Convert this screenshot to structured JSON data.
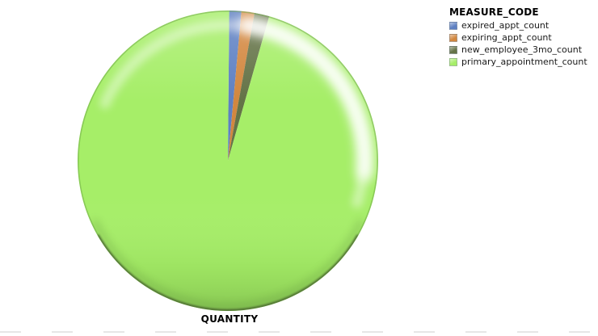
{
  "chart_data": {
    "type": "pie",
    "title": "",
    "xlabel": "QUANTITY",
    "legend_title": "MEASURE_CODE",
    "legend_position": "top-right",
    "background_color": "#FFFFFF",
    "style": "3d-glossy",
    "series": [
      {
        "name": "expired_appt_count",
        "color": "#5E80C2",
        "percent": 1.3
      },
      {
        "name": "expiring_appt_count",
        "color": "#D2873F",
        "percent": 1.4
      },
      {
        "name": "new_employee_3mo_count",
        "color": "#647347",
        "percent": 1.6
      },
      {
        "name": "primary_appointment_count",
        "color": "#A6EE68",
        "percent": 95.7
      }
    ]
  }
}
